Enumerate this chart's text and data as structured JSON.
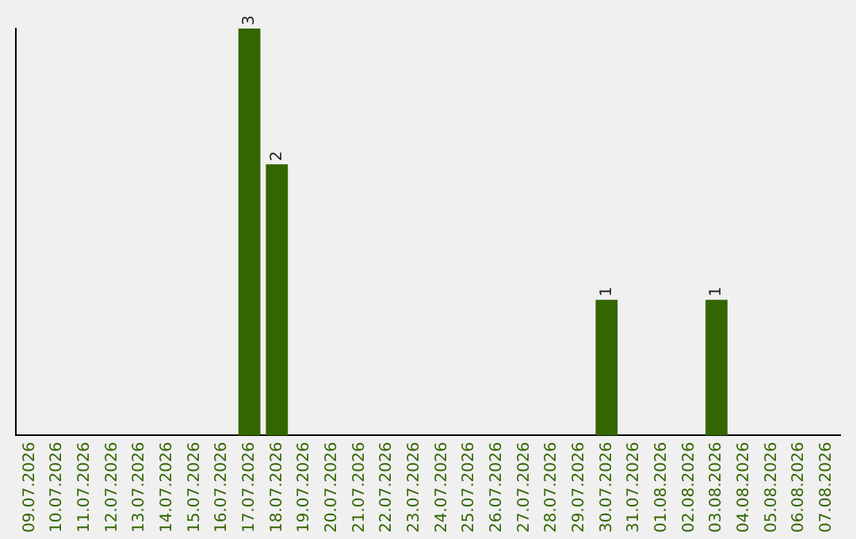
{
  "chart_data": {
    "type": "bar",
    "tick_labels": "x",
    "color": "#336600",
    "grid": false,
    "legend": false,
    "categories": [
      "09.07.2026",
      "10.07.2026",
      "11.07.2026",
      "12.07.2026",
      "13.07.2026",
      "14.07.2026",
      "15.07.2026",
      "16.07.2026",
      "17.07.2026",
      "18.07.2026",
      "19.07.2026",
      "20.07.2026",
      "21.07.2026",
      "22.07.2026",
      "23.07.2026",
      "24.07.2026",
      "25.07.2026",
      "26.07.2026",
      "27.07.2026",
      "28.07.2026",
      "29.07.2026",
      "30.07.2026",
      "31.07.2026",
      "01.08.2026",
      "02.08.2026",
      "03.08.2026",
      "04.08.2026",
      "05.08.2026",
      "06.08.2026",
      "07.08.2026"
    ],
    "values": [
      0,
      0,
      0,
      0,
      0,
      0,
      0,
      0,
      3,
      2,
      0,
      0,
      0,
      0,
      0,
      0,
      0,
      0,
      0,
      0,
      0,
      1,
      0,
      0,
      0,
      1,
      0,
      0,
      0,
      0
    ],
    "value_labels": [
      null,
      null,
      null,
      null,
      null,
      null,
      null,
      null,
      "3",
      "2",
      null,
      null,
      null,
      null,
      null,
      null,
      null,
      null,
      null,
      null,
      null,
      "1",
      null,
      null,
      null,
      "1",
      null,
      null,
      null,
      null
    ]
  }
}
